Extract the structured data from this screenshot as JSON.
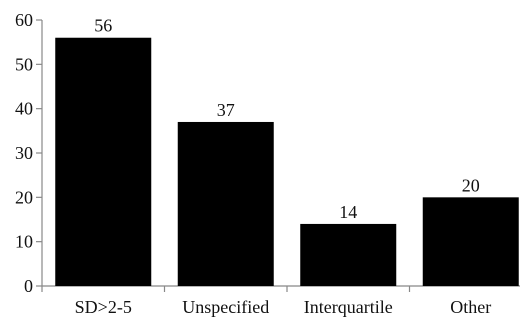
{
  "chart_data": {
    "type": "bar",
    "title": "",
    "xlabel": "",
    "ylabel": "",
    "categories": [
      "SD>2-5",
      "Unspecified",
      "Interquartile",
      "Other"
    ],
    "values": [
      56,
      37,
      14,
      20
    ],
    "data_labels": [
      "56",
      "37",
      "14",
      "20"
    ],
    "ylim": [
      0,
      60
    ],
    "yticks": [
      0,
      10,
      20,
      30,
      40,
      50,
      60
    ],
    "grid": false,
    "legend": "none",
    "bar_color": "#000000",
    "axis_color": "#888888"
  }
}
